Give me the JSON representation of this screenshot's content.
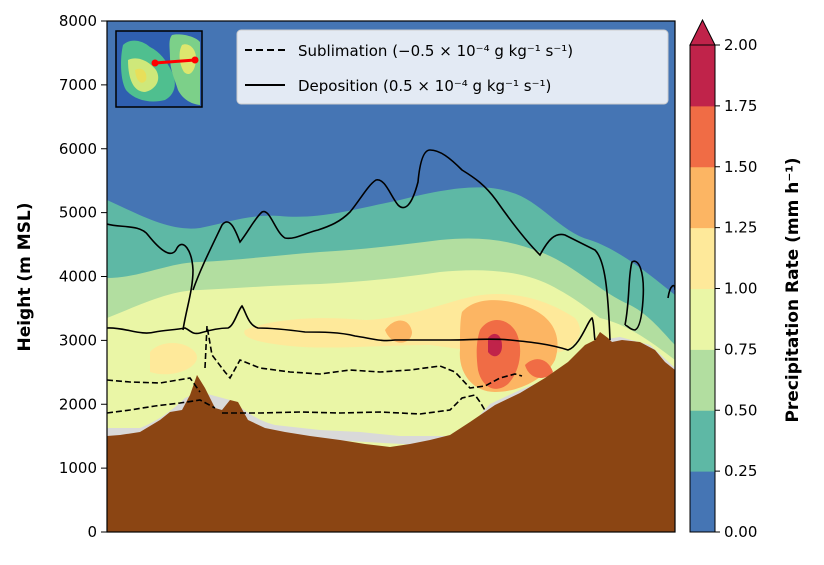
{
  "chart_data": {
    "type": "contourf",
    "title": "",
    "ylabel": "Height (m MSL)",
    "xlabel": "",
    "ylim": [
      0,
      8000
    ],
    "yticks": [
      "0",
      "1000",
      "2000",
      "3000",
      "4000",
      "5000",
      "6000",
      "7000",
      "8000"
    ],
    "grid": false,
    "colorbar": {
      "label": "Precipitation Rate (mm h⁻¹)",
      "levels": [
        0.0,
        0.25,
        0.5,
        0.75,
        1.0,
        1.25,
        1.5,
        1.75,
        2.0
      ],
      "tick_labels": [
        "0.00",
        "0.25",
        "0.50",
        "0.75",
        "1.00",
        "1.25",
        "1.50",
        "1.75",
        "2.00"
      ],
      "colors": [
        "#4575b4",
        "#5eb8a5",
        "#b2dea0",
        "#eaf6a6",
        "#fee99a",
        "#fcb563",
        "#f06c45",
        "#c0234a"
      ],
      "extend": "max"
    },
    "terrain_color": "#8b4513",
    "legend": {
      "placement": "top-right",
      "entries": [
        {
          "name": "Sublimation (−0.5 × 10⁻⁴ g kg⁻¹ s⁻¹)",
          "style": "dashed",
          "color": "#000000"
        },
        {
          "name": "Deposition (0.5 × 10⁻⁴ g kg⁻¹ s⁻¹)",
          "style": "solid",
          "color": "#000000"
        }
      ]
    },
    "inset_map": {
      "placement": "top-left",
      "transect_color": "#ff0000"
    }
  }
}
